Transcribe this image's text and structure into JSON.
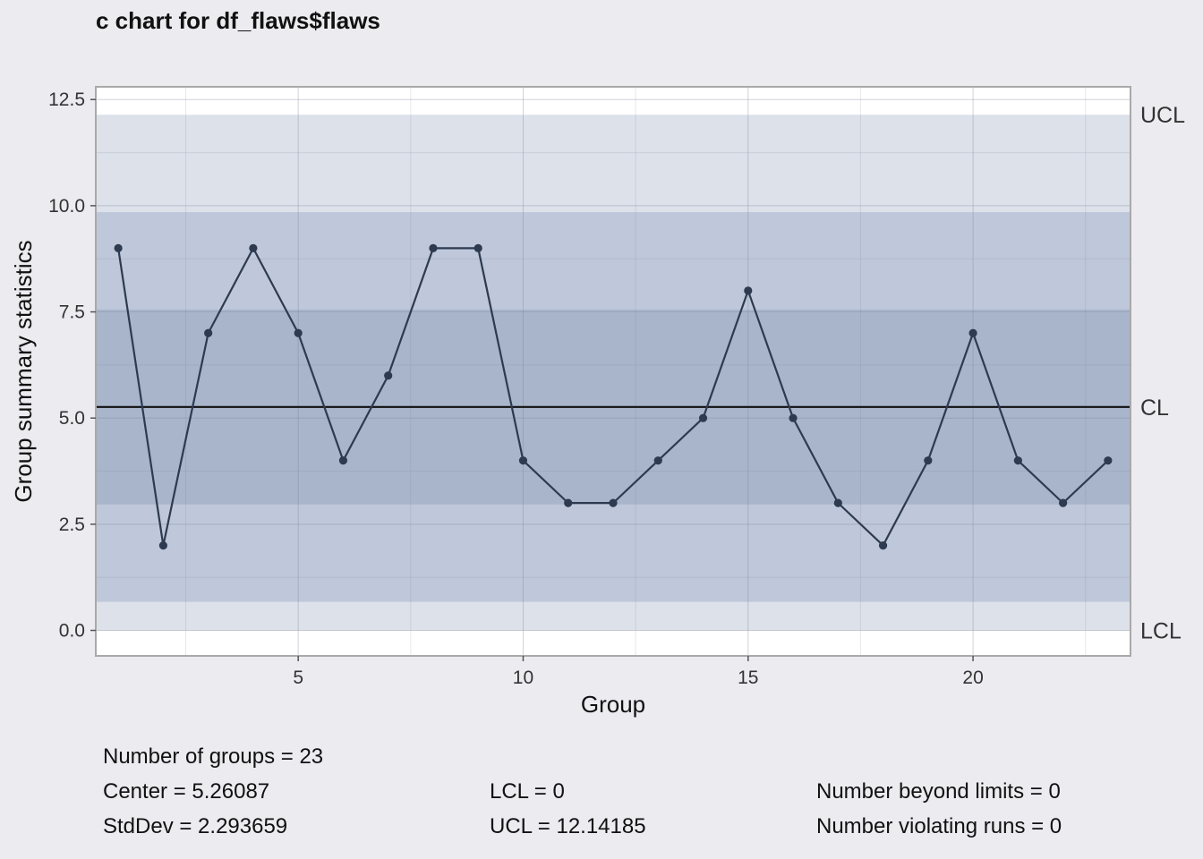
{
  "chart_data": {
    "type": "line",
    "title": "c chart for df_flaws$flaws",
    "xlabel": "Group",
    "ylabel": "Group summary statistics",
    "x": [
      1,
      2,
      3,
      4,
      5,
      6,
      7,
      8,
      9,
      10,
      11,
      12,
      13,
      14,
      15,
      16,
      17,
      18,
      19,
      20,
      21,
      22,
      23
    ],
    "values": [
      9,
      2,
      7,
      9,
      7,
      4,
      6,
      9,
      9,
      4,
      3,
      3,
      4,
      5,
      8,
      5,
      3,
      2,
      4,
      7,
      4,
      3,
      4
    ],
    "xlim": [
      0.5,
      23.5
    ],
    "ylim": [
      -0.6,
      12.8
    ],
    "x_ticks": [
      5,
      10,
      15,
      20
    ],
    "x_tick_labels": [
      "5",
      "10",
      "15",
      "20"
    ],
    "y_ticks": [
      0,
      2.5,
      5,
      7.5,
      10,
      12.5
    ],
    "y_tick_labels": [
      "0.0",
      "2.5",
      "5.0",
      "7.5",
      "10.0",
      "12.5"
    ],
    "center": 5.26087,
    "lcl": 0,
    "ucl": 12.14185,
    "sigma": 2.293659,
    "limit_labels": {
      "ucl": "UCL",
      "cl": "CL",
      "lcl": "LCL"
    },
    "grid": true,
    "colors": {
      "line": "#2d3a50",
      "center_line": "#111111",
      "zone_outer": "#dce1ea",
      "zone_middle": "#bec8da",
      "zone_inner": "#a8b5cb",
      "panel_bg": "#ffffff",
      "page_bg": "#ebebf0"
    }
  },
  "stats": {
    "groups": "Number of groups = 23",
    "center": "Center = 5.26087",
    "stddev": "StdDev = 2.293659",
    "lcl": "LCL = 0",
    "ucl": "UCL = 12.14185",
    "beyond": "Number beyond limits = 0",
    "violating": "Number violating runs = 0"
  }
}
